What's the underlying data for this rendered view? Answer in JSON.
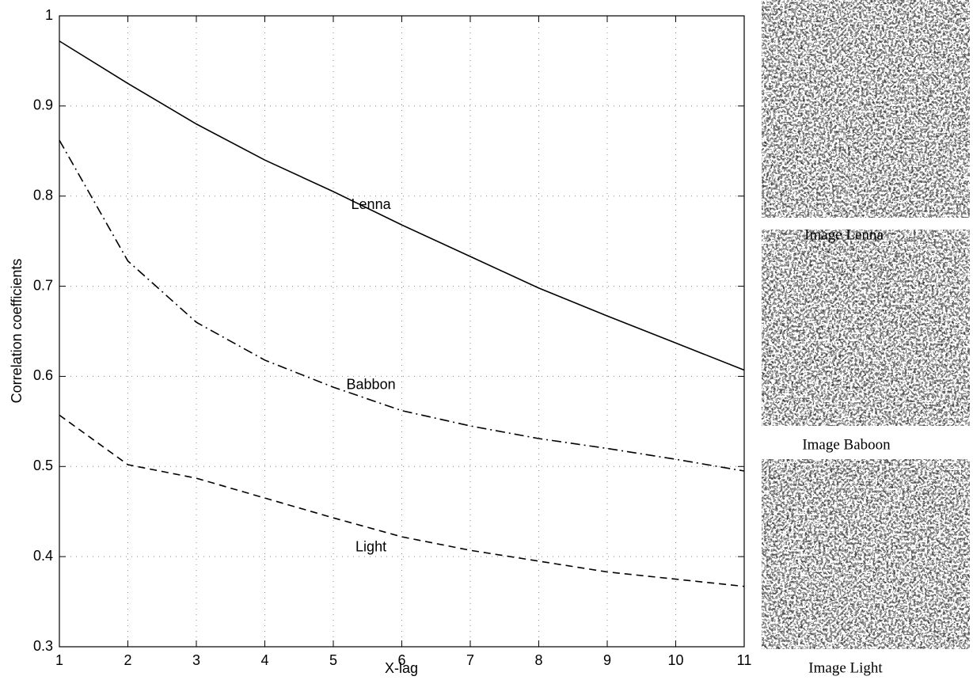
{
  "chart_data": {
    "type": "line",
    "x_label": "X-lag",
    "y_label": "Correlation coefficients",
    "x": [
      1,
      2,
      3,
      4,
      5,
      6,
      7,
      8,
      9,
      10,
      11
    ],
    "series": [
      {
        "name": "Lenna",
        "color": "#000000",
        "style": "solid",
        "values": [
          0.972,
          0.925,
          0.88,
          0.84,
          0.805,
          0.768,
          0.733,
          0.698,
          0.667,
          0.637,
          0.607
        ]
      },
      {
        "name": "Babbon",
        "color": "#000000",
        "style": "dashdot",
        "values": [
          0.862,
          0.728,
          0.66,
          0.618,
          0.588,
          0.562,
          0.545,
          0.531,
          0.52,
          0.508,
          0.495
        ]
      },
      {
        "name": "Light",
        "color": "#000000",
        "style": "dashed",
        "values": [
          0.557,
          0.502,
          0.487,
          0.465,
          0.443,
          0.422,
          0.407,
          0.395,
          0.383,
          0.375,
          0.367
        ]
      }
    ],
    "xlim": [
      1,
      11
    ],
    "xticks": [
      1,
      2,
      3,
      4,
      5,
      6,
      7,
      8,
      9,
      10,
      11
    ],
    "ylim": [
      0.3,
      1
    ],
    "yticks": [
      0.3,
      0.4,
      0.5,
      0.6,
      0.7,
      0.8,
      0.9,
      1
    ],
    "grid": true
  },
  "images": [
    {
      "caption": "Image Lenna"
    },
    {
      "caption": "Image Baboon"
    },
    {
      "caption": "Image Light"
    }
  ]
}
